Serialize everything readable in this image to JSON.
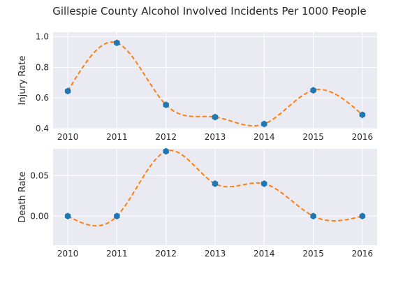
{
  "chart_data": {
    "title": "Gillespie County Alcohol Involved Incidents Per 1000 People",
    "colors": {
      "background": "#eaeaf2",
      "grid": "#ffffff",
      "marker": "#1f77b4",
      "curve": "#ff7f0e"
    },
    "panels": [
      {
        "type": "line",
        "x": [
          2010,
          2011,
          2012,
          2013,
          2014,
          2015,
          2016
        ],
        "series": [
          {
            "values": [
              0.645,
              0.96,
              0.555,
              0.475,
              0.43,
              0.65,
              0.49
            ],
            "marker": "hexagon",
            "line": "none"
          },
          {
            "values": [
              0.645,
              0.96,
              0.555,
              0.475,
              0.43,
              0.65,
              0.49
            ],
            "marker": "none",
            "line": "dashed spline"
          }
        ],
        "xticks": [
          "2010",
          "2011",
          "2012",
          "2013",
          "2014",
          "2015",
          "2016"
        ],
        "yticks": [
          "0.4",
          "0.6",
          "0.8",
          "1.0"
        ],
        "ytick_values": [
          0.4,
          0.6,
          0.8,
          1.0
        ],
        "xlabel": "",
        "ylabel": "Injury Rate",
        "xlim": [
          2009.7,
          2016.3
        ],
        "ylim": [
          0.4,
          1.03
        ],
        "grid": true
      },
      {
        "type": "line",
        "x": [
          2010,
          2011,
          2012,
          2013,
          2014,
          2015,
          2016
        ],
        "series": [
          {
            "values": [
              0.0,
              0.0,
              0.08,
              0.04,
              0.04,
              0.0,
              0.0
            ],
            "marker": "hexagon",
            "line": "none"
          },
          {
            "values": [
              0.0,
              0.0,
              0.08,
              0.04,
              0.04,
              0.0,
              0.0
            ],
            "marker": "none",
            "line": "dashed spline"
          }
        ],
        "xticks": [
          "2010",
          "2011",
          "2012",
          "2013",
          "2014",
          "2015",
          "2016"
        ],
        "yticks": [
          "0.00",
          "0.05"
        ],
        "ytick_values": [
          0.0,
          0.05
        ],
        "xlabel": "",
        "ylabel": "Death Rate",
        "xlim": [
          2009.7,
          2016.3
        ],
        "ylim": [
          -0.036,
          0.083
        ],
        "grid": true
      }
    ]
  }
}
